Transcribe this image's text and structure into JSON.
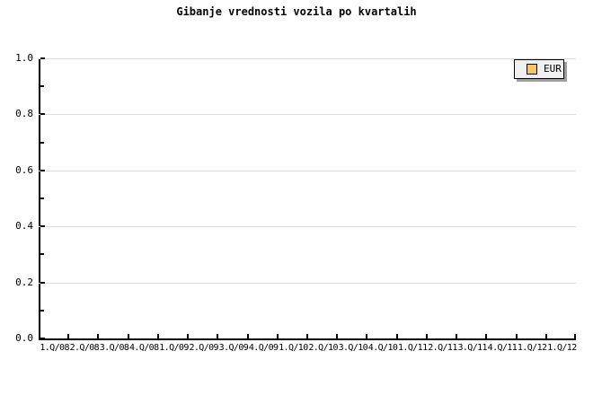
{
  "title": "Gibanje vrednosti vozila po kvartalih",
  "legend": {
    "position": "top-right",
    "items": [
      {
        "label": "EUR",
        "swatch_color": "#FBC55D"
      }
    ]
  },
  "chart_data": {
    "type": "line",
    "title": "Gibanje vrednosti vozila po kvartalih",
    "categories": [
      "1.Q/08",
      "2.Q/08",
      "3.Q/08",
      "4.Q/08",
      "1.Q/09",
      "2.Q/09",
      "3.Q/09",
      "4.Q/09",
      "1.Q/10",
      "2.Q/10",
      "3.Q/10",
      "4.Q/10",
      "1.Q/11",
      "2.Q/11",
      "3.Q/11",
      "4.Q/11",
      "1.Q/12",
      "1.Q/12"
    ],
    "series": [
      {
        "name": "EUR",
        "color": "#FBC55D",
        "values": []
      }
    ],
    "xlabel": "",
    "ylabel": "",
    "ylim": [
      0,
      1
    ],
    "y_major_tick_step": 0.2,
    "y_minor_tick_step": 0.1,
    "y_tick_labels": [
      "0.0",
      "0.2",
      "0.4",
      "0.6",
      "0.8",
      "1.0"
    ],
    "grid": "horizontal major gridlines only",
    "legend_position": "top-right",
    "plot_is_empty": true
  },
  "colors": {
    "background": "#FFFFFF",
    "axis": "#000000",
    "grid": "#DCDCDC",
    "text": "#000000",
    "legend_background": "#F0F0F0",
    "legend_shadow": "#9E9E9E",
    "series_eur": "#FBC55D"
  }
}
